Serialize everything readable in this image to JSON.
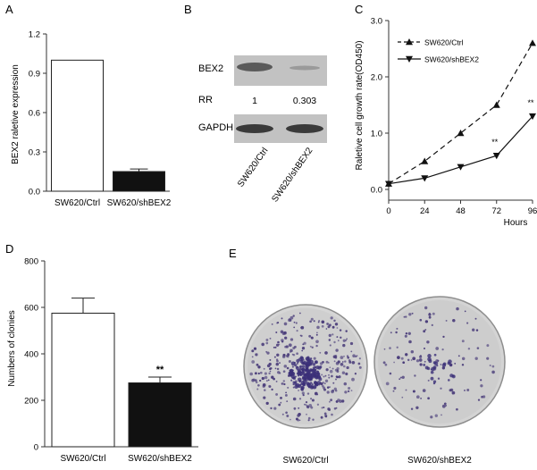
{
  "panels": {
    "A": {
      "letter": "A"
    },
    "B": {
      "letter": "B",
      "row_labels": [
        "BEX2",
        "RR",
        "GAPDH"
      ],
      "rr_values": [
        "1",
        "0.303"
      ],
      "lane_labels": [
        "SW620/Ctrl",
        "SW620/shBEX2"
      ]
    },
    "C": {
      "letter": "C"
    },
    "D": {
      "letter": "D"
    },
    "E": {
      "letter": "E",
      "plate_labels": [
        "SW620/Ctrl",
        "SW620/shBEX2"
      ]
    }
  },
  "chart_data": [
    {
      "id": "A",
      "type": "bar",
      "categories": [
        "SW620/Ctrl",
        "SW620/shBEX2"
      ],
      "values": [
        1.0,
        0.15
      ],
      "errors": [
        0,
        0.02
      ],
      "fills": [
        "#ffffff",
        "#111111"
      ],
      "ylabel": "BEX2 raletive expression",
      "ylim": [
        0,
        1.2
      ],
      "yticks": [
        0.0,
        0.3,
        0.6,
        0.9,
        1.2
      ],
      "ytick_labels": [
        "0.0",
        "0.3",
        "0.6",
        "0.9",
        "1.2"
      ],
      "grid": false
    },
    {
      "id": "C",
      "type": "line",
      "x": [
        0,
        24,
        48,
        72,
        96
      ],
      "xtick_labels": [
        "0",
        "24",
        "48",
        "72",
        "96"
      ],
      "series": [
        {
          "name": "SW620/Ctrl",
          "values": [
            0.1,
            0.5,
            1.0,
            1.5,
            2.6
          ],
          "marker": "triangle-up",
          "dash": "dashed"
        },
        {
          "name": "SW620/shBEX2",
          "values": [
            0.1,
            0.2,
            0.4,
            0.6,
            1.3
          ],
          "marker": "triangle-down",
          "dash": "solid"
        }
      ],
      "xlabel": "Hours",
      "ylabel": "Raletive cell growth rate(OD450)",
      "ylim": [
        0,
        3.0
      ],
      "yticks": [
        0.0,
        1.0,
        2.0,
        3.0
      ],
      "ytick_labels": [
        "0.0",
        "1.0",
        "2.0",
        "3.0"
      ],
      "annotations": [
        {
          "x": 72,
          "text": "**"
        },
        {
          "x": 96,
          "text": "**"
        }
      ],
      "legend_position": "top-left",
      "grid": false
    },
    {
      "id": "D",
      "type": "bar",
      "categories": [
        "SW620/Ctrl",
        "SW620/shBEX2"
      ],
      "values": [
        575,
        275
      ],
      "errors": [
        65,
        25
      ],
      "fills": [
        "#ffffff",
        "#111111"
      ],
      "ylabel": "Numbers of clonies",
      "ylim": [
        0,
        800
      ],
      "yticks": [
        0,
        200,
        400,
        600,
        800
      ],
      "ytick_labels": [
        "0",
        "200",
        "400",
        "600",
        "800"
      ],
      "annotations": [
        {
          "category": "SW620/shBEX2",
          "text": "**"
        }
      ],
      "grid": false
    }
  ]
}
